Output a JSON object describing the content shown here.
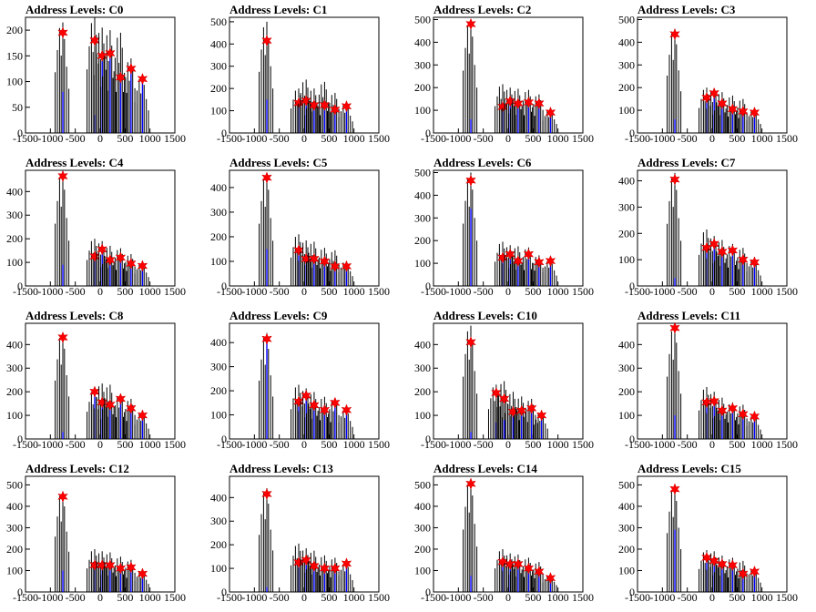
{
  "chart_data": [
    {
      "type": "bar",
      "title": "Address Levels: C0",
      "ylim": [
        0,
        225
      ],
      "yticks": [
        0,
        50,
        100,
        150,
        200
      ],
      "xlim": [
        -1500,
        1500
      ],
      "xticks": [
        -1500,
        -1000,
        -500,
        0,
        500,
        1000,
        1500
      ],
      "peaks": [
        {
          "x": -750,
          "y": 195,
          "max": 215,
          "blue": 80
        },
        {
          "x": -110,
          "y": 180,
          "max": 225,
          "blue": 35
        },
        {
          "x": 40,
          "y": 150,
          "max": 205,
          "blue": 140
        },
        {
          "x": 200,
          "y": 155,
          "max": 200,
          "blue": 150
        },
        {
          "x": 410,
          "y": 108,
          "max": 195,
          "blue": 100
        },
        {
          "x": 620,
          "y": 125,
          "max": 145,
          "blue": 120
        },
        {
          "x": 850,
          "y": 105,
          "max": 110,
          "blue": 100
        }
      ]
    },
    {
      "type": "bar",
      "title": "Address Levels: C1",
      "ylim": [
        0,
        520
      ],
      "yticks": [
        0,
        100,
        200,
        300,
        400,
        500
      ],
      "xlim": [
        -1500,
        1500
      ],
      "xticks": [
        -1500,
        -1000,
        -500,
        0,
        500,
        1000,
        1500
      ],
      "peaks": [
        {
          "x": -750,
          "y": 415,
          "max": 500,
          "blue": 150
        },
        {
          "x": -110,
          "y": 135,
          "max": 200,
          "blue": 130
        },
        {
          "x": 40,
          "y": 145,
          "max": 240,
          "blue": 140
        },
        {
          "x": 200,
          "y": 125,
          "max": 200,
          "blue": 120
        },
        {
          "x": 410,
          "y": 125,
          "max": 230,
          "blue": 120
        },
        {
          "x": 620,
          "y": 105,
          "max": 180,
          "blue": 100
        },
        {
          "x": 850,
          "y": 120,
          "max": 130,
          "blue": 115
        }
      ]
    },
    {
      "type": "bar",
      "title": "Address Levels: C2",
      "ylim": [
        0,
        510
      ],
      "yticks": [
        0,
        100,
        200,
        300,
        400,
        500
      ],
      "xlim": [
        -1500,
        1500
      ],
      "xticks": [
        -1500,
        -1000,
        -500,
        0,
        500,
        1000,
        1500
      ],
      "peaks": [
        {
          "x": -750,
          "y": 480,
          "max": 500,
          "blue": 60
        },
        {
          "x": -110,
          "y": 115,
          "max": 215,
          "blue": 100
        },
        {
          "x": 40,
          "y": 140,
          "max": 200,
          "blue": 130
        },
        {
          "x": 200,
          "y": 130,
          "max": 195,
          "blue": 125
        },
        {
          "x": 410,
          "y": 135,
          "max": 190,
          "blue": 130
        },
        {
          "x": 620,
          "y": 130,
          "max": 170,
          "blue": 125
        },
        {
          "x": 850,
          "y": 90,
          "max": 100,
          "blue": 85
        }
      ]
    },
    {
      "type": "bar",
      "title": "Address Levels: C3",
      "ylim": [
        0,
        510
      ],
      "yticks": [
        0,
        100,
        200,
        300,
        400,
        500
      ],
      "xlim": [
        -1500,
        1500
      ],
      "xticks": [
        -1500,
        -1000,
        -500,
        0,
        500,
        1000,
        1500
      ],
      "peaks": [
        {
          "x": -750,
          "y": 435,
          "max": 460,
          "blue": 60
        },
        {
          "x": -110,
          "y": 155,
          "max": 200,
          "blue": 150
        },
        {
          "x": 40,
          "y": 175,
          "max": 195,
          "blue": 165
        },
        {
          "x": 200,
          "y": 130,
          "max": 180,
          "blue": 125
        },
        {
          "x": 410,
          "y": 105,
          "max": 165,
          "blue": 100
        },
        {
          "x": 620,
          "y": 95,
          "max": 150,
          "blue": 90
        },
        {
          "x": 850,
          "y": 90,
          "max": 100,
          "blue": 85
        }
      ]
    },
    {
      "type": "bar",
      "title": "Address Levels: C4",
      "ylim": [
        0,
        490
      ],
      "yticks": [
        0,
        100,
        200,
        300,
        400
      ],
      "xlim": [
        -1500,
        1500
      ],
      "xticks": [
        -1500,
        -1000,
        -500,
        0,
        500,
        1000,
        1500
      ],
      "peaks": [
        {
          "x": -750,
          "y": 465,
          "max": 480,
          "blue": 90
        },
        {
          "x": -110,
          "y": 125,
          "max": 200,
          "blue": 120
        },
        {
          "x": 40,
          "y": 155,
          "max": 190,
          "blue": 150
        },
        {
          "x": 200,
          "y": 110,
          "max": 170,
          "blue": 105
        },
        {
          "x": 410,
          "y": 120,
          "max": 160,
          "blue": 115
        },
        {
          "x": 620,
          "y": 95,
          "max": 135,
          "blue": 90
        },
        {
          "x": 850,
          "y": 85,
          "max": 95,
          "blue": 80
        }
      ]
    },
    {
      "type": "bar",
      "title": "Address Levels: C5",
      "ylim": [
        0,
        470
      ],
      "yticks": [
        0,
        100,
        200,
        300,
        400
      ],
      "xlim": [
        -1500,
        1500
      ],
      "xticks": [
        -1500,
        -1000,
        -500,
        0,
        500,
        1000,
        1500
      ],
      "peaks": [
        {
          "x": -750,
          "y": 440,
          "max": 460,
          "blue": 150
        },
        {
          "x": -110,
          "y": 145,
          "max": 210,
          "blue": 140
        },
        {
          "x": 40,
          "y": 110,
          "max": 185,
          "blue": 105
        },
        {
          "x": 200,
          "y": 110,
          "max": 180,
          "blue": 105
        },
        {
          "x": 410,
          "y": 100,
          "max": 155,
          "blue": 95
        },
        {
          "x": 620,
          "y": 80,
          "max": 145,
          "blue": 75
        },
        {
          "x": 850,
          "y": 80,
          "max": 100,
          "blue": 75
        }
      ]
    },
    {
      "type": "bar",
      "title": "Address Levels: C6",
      "ylim": [
        0,
        510
      ],
      "yticks": [
        0,
        100,
        200,
        300,
        400,
        500
      ],
      "xlim": [
        -1500,
        1500
      ],
      "xticks": [
        -1500,
        -1000,
        -500,
        0,
        500,
        1000,
        1500
      ],
      "peaks": [
        {
          "x": -750,
          "y": 465,
          "max": 500,
          "blue": 340
        },
        {
          "x": -110,
          "y": 125,
          "max": 195,
          "blue": 120
        },
        {
          "x": 40,
          "y": 140,
          "max": 180,
          "blue": 135
        },
        {
          "x": 200,
          "y": 110,
          "max": 175,
          "blue": 105
        },
        {
          "x": 410,
          "y": 140,
          "max": 170,
          "blue": 135
        },
        {
          "x": 620,
          "y": 105,
          "max": 135,
          "blue": 100
        },
        {
          "x": 850,
          "y": 110,
          "max": 115,
          "blue": 105
        }
      ]
    },
    {
      "type": "bar",
      "title": "Address Levels: C7",
      "ylim": [
        0,
        440
      ],
      "yticks": [
        0,
        100,
        200,
        300,
        400
      ],
      "xlim": [
        -1500,
        1500
      ],
      "xticks": [
        -1500,
        -1000,
        -500,
        0,
        500,
        1000,
        1500
      ],
      "peaks": [
        {
          "x": -750,
          "y": 405,
          "max": 430,
          "blue": 30
        },
        {
          "x": -110,
          "y": 145,
          "max": 215,
          "blue": 140
        },
        {
          "x": 40,
          "y": 160,
          "max": 190,
          "blue": 155
        },
        {
          "x": 200,
          "y": 130,
          "max": 175,
          "blue": 125
        },
        {
          "x": 410,
          "y": 135,
          "max": 160,
          "blue": 130
        },
        {
          "x": 620,
          "y": 100,
          "max": 145,
          "blue": 95
        },
        {
          "x": 850,
          "y": 90,
          "max": 100,
          "blue": 85
        }
      ]
    },
    {
      "type": "bar",
      "title": "Address Levels: C8",
      "ylim": [
        0,
        490
      ],
      "yticks": [
        0,
        100,
        200,
        300,
        400
      ],
      "xlim": [
        -1500,
        1500
      ],
      "xticks": [
        -1500,
        -1000,
        -500,
        0,
        500,
        1000,
        1500
      ],
      "peaks": [
        {
          "x": -750,
          "y": 430,
          "max": 450,
          "blue": 30
        },
        {
          "x": -110,
          "y": 200,
          "max": 210,
          "blue": 190
        },
        {
          "x": 40,
          "y": 155,
          "max": 235,
          "blue": 150
        },
        {
          "x": 200,
          "y": 145,
          "max": 230,
          "blue": 140
        },
        {
          "x": 410,
          "y": 170,
          "max": 190,
          "blue": 165
        },
        {
          "x": 620,
          "y": 130,
          "max": 170,
          "blue": 125
        },
        {
          "x": 850,
          "y": 100,
          "max": 110,
          "blue": 95
        }
      ]
    },
    {
      "type": "bar",
      "title": "Address Levels: C9",
      "ylim": [
        0,
        480
      ],
      "yticks": [
        0,
        100,
        200,
        300,
        400
      ],
      "xlim": [
        -1500,
        1500
      ],
      "xticks": [
        -1500,
        -1000,
        -500,
        0,
        500,
        1000,
        1500
      ],
      "peaks": [
        {
          "x": -750,
          "y": 415,
          "max": 440,
          "blue": 410
        },
        {
          "x": -110,
          "y": 155,
          "max": 225,
          "blue": 150
        },
        {
          "x": 40,
          "y": 180,
          "max": 210,
          "blue": 175
        },
        {
          "x": 200,
          "y": 140,
          "max": 195,
          "blue": 135
        },
        {
          "x": 410,
          "y": 120,
          "max": 175,
          "blue": 115
        },
        {
          "x": 620,
          "y": 150,
          "max": 165,
          "blue": 145
        },
        {
          "x": 850,
          "y": 120,
          "max": 125,
          "blue": 115
        }
      ]
    },
    {
      "type": "bar",
      "title": "Address Levels: C10",
      "ylim": [
        0,
        490
      ],
      "yticks": [
        0,
        100,
        200,
        300,
        400
      ],
      "xlim": [
        -1500,
        1500
      ],
      "xticks": [
        -1500,
        -1000,
        -500,
        0,
        500,
        1000,
        1500
      ],
      "peaks": [
        {
          "x": -750,
          "y": 410,
          "max": 480,
          "blue": 30
        },
        {
          "x": -240,
          "y": 195,
          "max": 230,
          "blue": 70
        },
        {
          "x": -80,
          "y": 170,
          "max": 245,
          "blue": 80
        },
        {
          "x": 100,
          "y": 115,
          "max": 200,
          "blue": 100
        },
        {
          "x": 270,
          "y": 120,
          "max": 180,
          "blue": 110
        },
        {
          "x": 470,
          "y": 130,
          "max": 170,
          "blue": 120
        },
        {
          "x": 670,
          "y": 100,
          "max": 110,
          "blue": 95
        }
      ]
    },
    {
      "type": "bar",
      "title": "Address Levels: C11",
      "ylim": [
        0,
        490
      ],
      "yticks": [
        0,
        100,
        200,
        300,
        400
      ],
      "xlim": [
        -1500,
        1500
      ],
      "xticks": [
        -1500,
        -1000,
        -500,
        0,
        500,
        1000,
        1500
      ],
      "peaks": [
        {
          "x": -750,
          "y": 470,
          "max": 480,
          "blue": 100
        },
        {
          "x": -110,
          "y": 155,
          "max": 220,
          "blue": 150
        },
        {
          "x": 40,
          "y": 160,
          "max": 200,
          "blue": 155
        },
        {
          "x": 200,
          "y": 120,
          "max": 175,
          "blue": 115
        },
        {
          "x": 410,
          "y": 130,
          "max": 155,
          "blue": 125
        },
        {
          "x": 620,
          "y": 105,
          "max": 145,
          "blue": 100
        },
        {
          "x": 850,
          "y": 95,
          "max": 100,
          "blue": 90
        }
      ]
    },
    {
      "type": "bar",
      "title": "Address Levels: C12",
      "ylim": [
        0,
        540
      ],
      "yticks": [
        0,
        100,
        200,
        300,
        400,
        500
      ],
      "xlim": [
        -1500,
        1500
      ],
      "xticks": [
        -1500,
        -1000,
        -500,
        0,
        500,
        1000,
        1500
      ],
      "peaks": [
        {
          "x": -750,
          "y": 445,
          "max": 470,
          "blue": 100
        },
        {
          "x": -110,
          "y": 125,
          "max": 200,
          "blue": 120
        },
        {
          "x": 40,
          "y": 125,
          "max": 190,
          "blue": 120
        },
        {
          "x": 200,
          "y": 125,
          "max": 185,
          "blue": 120
        },
        {
          "x": 410,
          "y": 110,
          "max": 165,
          "blue": 105
        },
        {
          "x": 620,
          "y": 115,
          "max": 150,
          "blue": 110
        },
        {
          "x": 850,
          "y": 85,
          "max": 95,
          "blue": 80
        }
      ]
    },
    {
      "type": "bar",
      "title": "Address Levels: C13",
      "ylim": [
        0,
        490
      ],
      "yticks": [
        0,
        100,
        200,
        300,
        400
      ],
      "xlim": [
        -1500,
        1500
      ],
      "xticks": [
        -1500,
        -1000,
        -500,
        0,
        500,
        1000,
        1500
      ],
      "peaks": [
        {
          "x": -750,
          "y": 415,
          "max": 440,
          "blue": 20
        },
        {
          "x": -110,
          "y": 125,
          "max": 205,
          "blue": 120
        },
        {
          "x": 40,
          "y": 135,
          "max": 185,
          "blue": 130
        },
        {
          "x": 200,
          "y": 110,
          "max": 175,
          "blue": 105
        },
        {
          "x": 410,
          "y": 100,
          "max": 155,
          "blue": 95
        },
        {
          "x": 620,
          "y": 100,
          "max": 145,
          "blue": 95
        },
        {
          "x": 850,
          "y": 120,
          "max": 125,
          "blue": 115
        }
      ]
    },
    {
      "type": "bar",
      "title": "Address Levels: C14",
      "ylim": [
        0,
        540
      ],
      "yticks": [
        0,
        100,
        200,
        300,
        400,
        500
      ],
      "xlim": [
        -1500,
        1500
      ],
      "xticks": [
        -1500,
        -1000,
        -500,
        0,
        500,
        1000,
        1500
      ],
      "peaks": [
        {
          "x": -750,
          "y": 505,
          "max": 530,
          "blue": 75
        },
        {
          "x": -110,
          "y": 140,
          "max": 200,
          "blue": 135
        },
        {
          "x": 40,
          "y": 130,
          "max": 180,
          "blue": 125
        },
        {
          "x": 200,
          "y": 130,
          "max": 175,
          "blue": 125
        },
        {
          "x": 410,
          "y": 110,
          "max": 160,
          "blue": 105
        },
        {
          "x": 620,
          "y": 95,
          "max": 140,
          "blue": 90
        },
        {
          "x": 850,
          "y": 65,
          "max": 80,
          "blue": 60
        }
      ]
    },
    {
      "type": "bar",
      "title": "Address Levels: C15",
      "ylim": [
        0,
        540
      ],
      "yticks": [
        0,
        100,
        200,
        300,
        400,
        500
      ],
      "xlim": [
        -1500,
        1500
      ],
      "xticks": [
        -1500,
        -1000,
        -500,
        0,
        500,
        1000,
        1500
      ],
      "peaks": [
        {
          "x": -750,
          "y": 480,
          "max": 500,
          "blue": 290
        },
        {
          "x": -110,
          "y": 160,
          "max": 195,
          "blue": 155
        },
        {
          "x": 40,
          "y": 145,
          "max": 190,
          "blue": 140
        },
        {
          "x": 200,
          "y": 130,
          "max": 170,
          "blue": 125
        },
        {
          "x": 410,
          "y": 125,
          "max": 160,
          "blue": 120
        },
        {
          "x": 620,
          "y": 85,
          "max": 145,
          "blue": 80
        },
        {
          "x": 850,
          "y": 95,
          "max": 110,
          "blue": 90
        }
      ]
    }
  ],
  "colors": {
    "histogram": "#000000",
    "fit": "#0000ff",
    "marker": "#ff0000"
  }
}
